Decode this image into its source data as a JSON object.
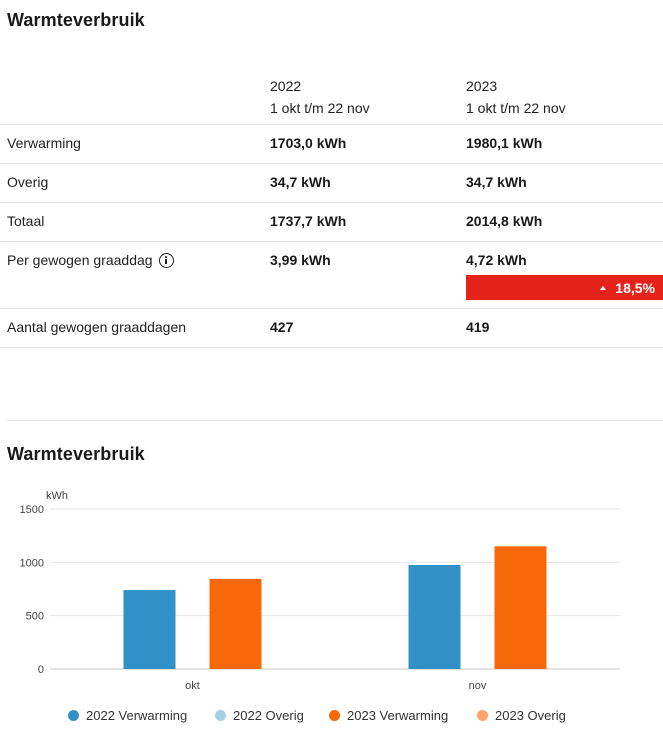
{
  "section_title": "Warmteverbruik",
  "table": {
    "col1": {
      "year": "2022",
      "period": "1 okt t/m 22 nov"
    },
    "col2": {
      "year": "2023",
      "period": "1 okt t/m 22 nov"
    },
    "rows": [
      {
        "label": "Verwarming",
        "v2022": "1703,0 kWh",
        "v2023": "1980,1 kWh"
      },
      {
        "label": "Overig",
        "v2022": "34,7 kWh",
        "v2023": "34,7 kWh"
      },
      {
        "label": "Totaal",
        "v2022": "1737,7 kWh",
        "v2023": "2014,8 kWh"
      },
      {
        "label": "Per gewogen graaddag",
        "v2022": "3,99 kWh",
        "v2023": "4,72 kWh",
        "change": "18,5%",
        "change_direction": "up",
        "change_color": "#e5231b"
      },
      {
        "label": "Aantal gewogen graaddagen",
        "v2022": "427",
        "v2023": "419"
      }
    ]
  },
  "chart_title": "Warmteverbruik",
  "chart_data": {
    "type": "bar",
    "stacked": true,
    "categories": [
      "okt",
      "nov"
    ],
    "ylabel": "kWh",
    "ylim": [
      0,
      1500
    ],
    "yticks": [
      0,
      500,
      1000,
      1500
    ],
    "grid": true,
    "legend_position": "bottom",
    "series": [
      {
        "name": "2022 Verwarming",
        "color": "#3190c6",
        "group": "2022",
        "values": [
          740,
          975
        ]
      },
      {
        "name": "2022 Overig",
        "color": "#a5d1e6",
        "group": "2022",
        "values": [
          0,
          0
        ]
      },
      {
        "name": "2023 Verwarming",
        "color": "#f76808",
        "group": "2023",
        "values": [
          845,
          1150
        ]
      },
      {
        "name": "2023 Overig",
        "color": "#f9a56d",
        "group": "2023",
        "values": [
          0,
          0
        ]
      }
    ]
  }
}
